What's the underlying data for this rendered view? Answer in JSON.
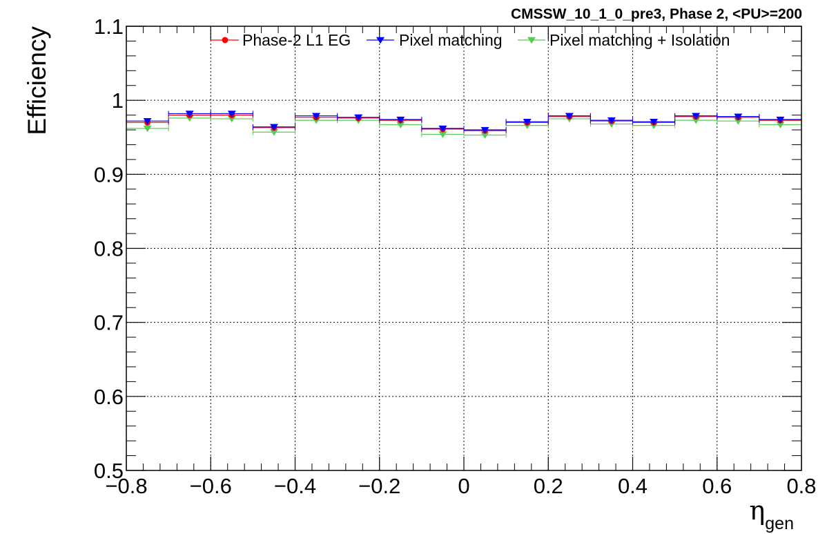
{
  "chart_data": {
    "type": "scatter",
    "title": "CMSSW_10_1_0_pre3, Phase 2, <PU>=200",
    "xlabel_symbol": "η",
    "xlabel_sub": "gen",
    "ylabel": "Efficiency",
    "xlim": [
      -0.8,
      0.8
    ],
    "ylim": [
      0.5,
      1.1
    ],
    "x_ticks": [
      "−0.8",
      "−0.6",
      "−0.4",
      "−0.2",
      "0",
      "0.2",
      "0.4",
      "0.6",
      "0.8"
    ],
    "y_ticks": [
      "0.5",
      "0.6",
      "0.7",
      "0.8",
      "0.9",
      "1",
      "1.1"
    ],
    "grid": true,
    "legend_position": "top",
    "bin_edges": [
      -0.8,
      -0.7,
      -0.6,
      -0.5,
      -0.4,
      -0.3,
      -0.2,
      -0.1,
      0.0,
      0.1,
      0.2,
      0.3,
      0.4,
      0.5,
      0.6,
      0.7,
      0.8
    ],
    "x": [
      -0.75,
      -0.65,
      -0.55,
      -0.45,
      -0.35,
      -0.25,
      -0.15,
      -0.05,
      0.05,
      0.15,
      0.25,
      0.35,
      0.45,
      0.55,
      0.65,
      0.75
    ],
    "series": [
      {
        "name": "Phase-2 L1 EG",
        "color": "#ff0000",
        "marker": "circle",
        "values": [
          0.97,
          0.98,
          0.98,
          0.963,
          0.977,
          0.976,
          0.973,
          0.961,
          0.959,
          0.97,
          0.978,
          0.972,
          0.97,
          0.978,
          0.977,
          0.973
        ]
      },
      {
        "name": "Pixel matching",
        "color": "#0000ff",
        "marker": "triangle-down",
        "values": [
          0.972,
          0.982,
          0.982,
          0.964,
          0.979,
          0.977,
          0.974,
          0.962,
          0.96,
          0.971,
          0.979,
          0.973,
          0.971,
          0.979,
          0.978,
          0.974
        ]
      },
      {
        "name": "Pixel matching + Isolation",
        "color": "#55cc55",
        "marker": "triangle-down",
        "values": [
          0.962,
          0.976,
          0.975,
          0.957,
          0.973,
          0.973,
          0.967,
          0.954,
          0.953,
          0.966,
          0.975,
          0.968,
          0.966,
          0.973,
          0.972,
          0.967
        ]
      }
    ]
  }
}
